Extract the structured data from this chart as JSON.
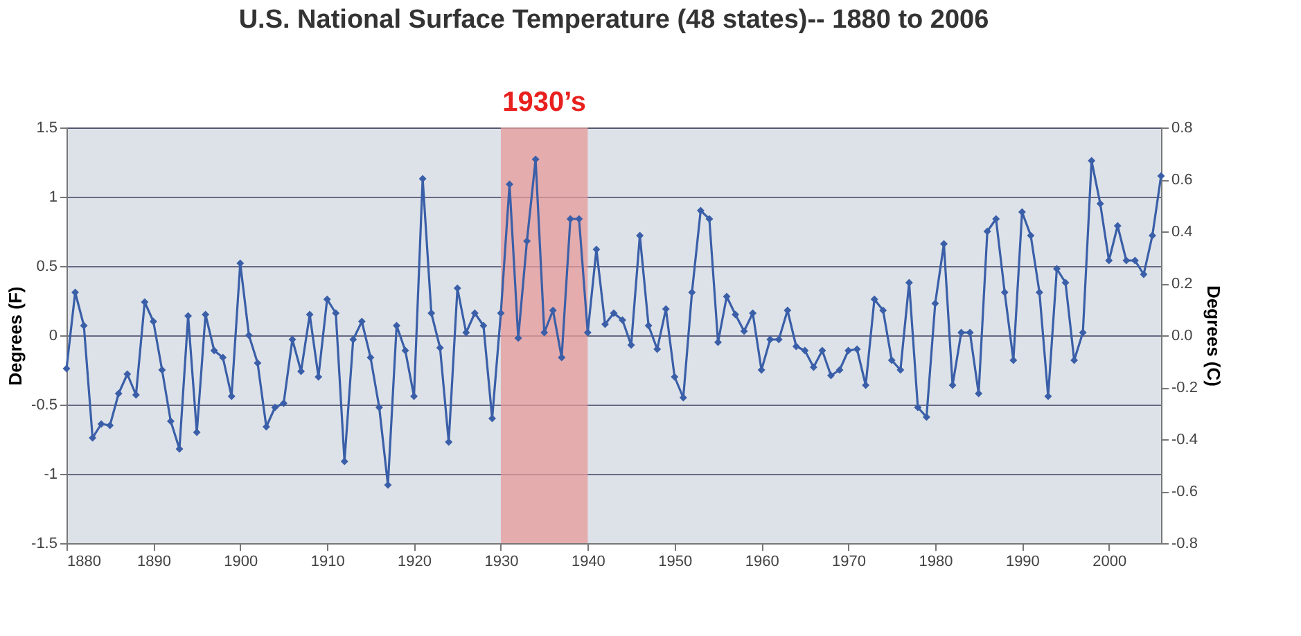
{
  "chart_data": {
    "type": "line",
    "title": "U.S. National Surface Temperature (48 states)-- 1880 to 2006",
    "xlabel": null,
    "ylabel": "Degrees (F)",
    "y2label": "Degrees (C)",
    "x": [
      1880,
      1881,
      1882,
      1883,
      1884,
      1885,
      1886,
      1887,
      1888,
      1889,
      1890,
      1891,
      1892,
      1893,
      1894,
      1895,
      1896,
      1897,
      1898,
      1899,
      1900,
      1901,
      1902,
      1903,
      1904,
      1905,
      1906,
      1907,
      1908,
      1909,
      1910,
      1911,
      1912,
      1913,
      1914,
      1915,
      1916,
      1917,
      1918,
      1919,
      1920,
      1921,
      1922,
      1923,
      1924,
      1925,
      1926,
      1927,
      1928,
      1929,
      1930,
      1931,
      1932,
      1933,
      1934,
      1935,
      1936,
      1937,
      1938,
      1939,
      1940,
      1941,
      1942,
      1943,
      1944,
      1945,
      1946,
      1947,
      1948,
      1949,
      1950,
      1951,
      1952,
      1953,
      1954,
      1955,
      1956,
      1957,
      1958,
      1959,
      1960,
      1961,
      1962,
      1963,
      1964,
      1965,
      1966,
      1967,
      1968,
      1969,
      1970,
      1971,
      1972,
      1973,
      1974,
      1975,
      1976,
      1977,
      1978,
      1979,
      1980,
      1981,
      1982,
      1983,
      1984,
      1985,
      1986,
      1987,
      1988,
      1989,
      1990,
      1991,
      1992,
      1993,
      1994,
      1995,
      1996,
      1997,
      1998,
      1999,
      2000,
      2001,
      2002,
      2003,
      2004,
      2005,
      2006
    ],
    "series": [
      {
        "color": "#3a5fa8",
        "marker": "diamond",
        "line_style": "solid",
        "values": [
          -0.24,
          0.31,
          0.07,
          -0.74,
          -0.64,
          -0.65,
          -0.42,
          -0.28,
          -0.43,
          0.24,
          0.1,
          -0.25,
          -0.62,
          -0.82,
          0.14,
          -0.7,
          0.15,
          -0.11,
          -0.16,
          -0.44,
          0.52,
          0.0,
          -0.2,
          -0.66,
          -0.52,
          -0.49,
          -0.03,
          -0.26,
          0.15,
          -0.3,
          0.26,
          0.16,
          -0.91,
          -0.03,
          0.1,
          -0.16,
          -0.52,
          -1.08,
          0.07,
          -0.11,
          -0.44,
          1.13,
          0.16,
          -0.09,
          -0.77,
          0.34,
          0.02,
          0.16,
          0.07,
          -0.6,
          0.16,
          1.09,
          -0.02,
          0.68,
          1.27,
          0.02,
          0.18,
          -0.16,
          0.84,
          0.84,
          0.02,
          0.62,
          0.08,
          0.16,
          0.11,
          -0.07,
          0.72,
          0.07,
          -0.1,
          0.19,
          -0.3,
          -0.45,
          0.31,
          0.9,
          0.84,
          -0.05,
          0.28,
          0.15,
          0.03,
          0.16,
          -0.25,
          -0.03,
          -0.03,
          0.18,
          -0.08,
          -0.11,
          -0.23,
          -0.11,
          -0.29,
          -0.25,
          -0.11,
          -0.1,
          -0.36,
          0.26,
          0.18,
          -0.18,
          -0.25,
          0.38,
          -0.52,
          -0.59,
          0.23,
          0.66,
          -0.36,
          0.02,
          0.02,
          -0.42,
          0.75,
          0.84,
          0.31,
          -0.18,
          0.89,
          0.72,
          0.31,
          -0.44,
          0.48,
          0.38,
          -0.18,
          0.02,
          1.26,
          0.95,
          0.54,
          0.79,
          0.54,
          0.54,
          0.44,
          0.72,
          1.15
        ]
      }
    ],
    "xlim": [
      1880,
      2006
    ],
    "xticks": [
      1880,
      1890,
      1900,
      1910,
      1920,
      1930,
      1940,
      1950,
      1960,
      1970,
      1980,
      1990,
      2000
    ],
    "ylim": [
      -1.5,
      1.5
    ],
    "yticks": [
      -1.5,
      -1,
      -0.5,
      0,
      0.5,
      1,
      1.5
    ],
    "y2lim": [
      -0.8,
      0.8
    ],
    "y2ticks": [
      {
        "value": -0.8,
        "label": "-0.8"
      },
      {
        "value": -0.6,
        "label": "-0.6"
      },
      {
        "value": -0.4,
        "label": "-0.4"
      },
      {
        "value": -0.2,
        "label": "-0.2"
      },
      {
        "value": 0,
        "label": "0.0"
      },
      {
        "value": 0.2,
        "label": "0.2"
      },
      {
        "value": 0.4,
        "label": "0.4"
      },
      {
        "value": 0.6,
        "label": "0.6"
      },
      {
        "value": 0.8,
        "label": "0.8"
      }
    ],
    "bands": [
      {
        "axis": "x",
        "from": 1930,
        "to": 1940,
        "label": "1930’s",
        "color": "#e59a9a"
      }
    ],
    "grid": "y"
  }
}
